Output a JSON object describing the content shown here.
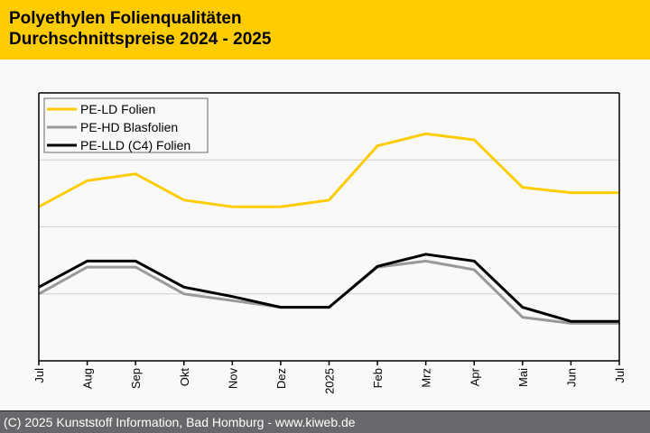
{
  "header": {
    "title_line1": "Polyethylen Folienqualitäten",
    "title_line2": "Durchschnittspreise 2024 - 2025"
  },
  "footer": {
    "text": "(C) 2025 Kunststoff Information, Bad Homburg - www.kiweb.de"
  },
  "colors": {
    "header_bg": "#ffcc00",
    "footer_bg": "#68686c",
    "pe_ld": "#ffcc00",
    "pe_hd": "#999999",
    "pe_lld": "#000000"
  },
  "chart_data": {
    "type": "line",
    "title": "Polyethylen Folienqualitäten Durchschnittspreise 2024 - 2025",
    "xlabel": "",
    "ylabel": "",
    "y_ticks_labeled": false,
    "ylim": [
      0,
      4
    ],
    "grid": "horizontal",
    "legend_position": "top-left",
    "categories": [
      "Jul",
      "Aug",
      "Sep",
      "Okt",
      "Nov",
      "Dez",
      "2025",
      "Feb",
      "Mrz",
      "Apr",
      "Mai",
      "Jun",
      "Jul"
    ],
    "series": [
      {
        "name": "PE-LD Folien",
        "color": "#ffcc00",
        "values": [
          2.3,
          2.69,
          2.79,
          2.4,
          2.3,
          2.3,
          2.4,
          3.21,
          3.39,
          3.3,
          2.59,
          2.51,
          2.51
        ]
      },
      {
        "name": "PE-HD Blasfolien",
        "color": "#999999",
        "values": [
          1.0,
          1.4,
          1.4,
          1.0,
          0.9,
          0.8,
          0.8,
          1.4,
          1.49,
          1.36,
          0.65,
          0.56,
          0.56
        ]
      },
      {
        "name": "PE-LLD (C4) Folien",
        "color": "#000000",
        "values": [
          1.1,
          1.49,
          1.49,
          1.1,
          0.96,
          0.8,
          0.8,
          1.41,
          1.59,
          1.49,
          0.8,
          0.59,
          0.59
        ]
      }
    ]
  }
}
